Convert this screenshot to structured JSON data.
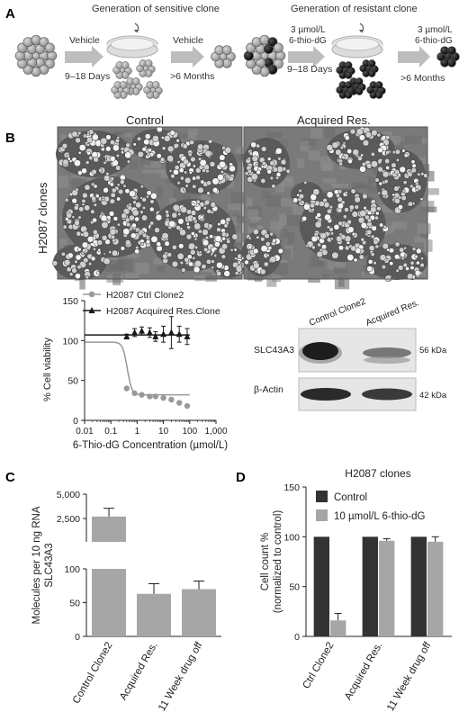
{
  "panels": {
    "A": {
      "label": "A",
      "sensitive_title": "Generation of sensitive clone",
      "resistant_title": "Generation of resistant clone",
      "vehicle1": "Vehicle",
      "days1": "9–18 Days",
      "vehicle2": "Vehicle",
      "months1": ">6 Months",
      "drug1_line1": "3 µmol/L",
      "drug1_line2": "6-thio-dG",
      "days2": "9–18 Days",
      "drug2_line1": "3 µmol/L",
      "drug2_line2": "6-thio-dG",
      "months2": ">6 Months"
    },
    "B": {
      "label": "B",
      "col_control": "Control",
      "col_resistant": "Acquired Res.",
      "row_label": "H2087 clones",
      "blot": {
        "lane1": "Control Clone2",
        "lane2": "Acquired Res.",
        "row1": "SLC43A3",
        "row2": "β-Actin",
        "kda1": "56 kDa",
        "kda2": "42 kDa"
      }
    },
    "C": {
      "label": "C"
    },
    "D": {
      "label": "D"
    }
  },
  "colors": {
    "ctrl_grey": "#999999",
    "acq_black": "#1a1a1a",
    "bar_dark": "#333333",
    "bar_light": "#a6a6a6"
  },
  "chart_data": [
    {
      "id": "B",
      "type": "line",
      "ylabel": "% Cell viability",
      "xlabel": "6-Thio-dG Concentration (µmol/L)",
      "xscale": "log",
      "xlim": [
        0.01,
        1000
      ],
      "ylim": [
        0,
        150
      ],
      "xticks": [
        "0.01",
        "0.1",
        "1",
        "10",
        "100",
        "1,000"
      ],
      "yticks": [
        "0",
        "50",
        "100",
        "150"
      ],
      "legend_position": "top-left",
      "series": [
        {
          "name": "H2087 Ctrl Clone2",
          "color": "#999999",
          "marker": "circle",
          "x": [
            0.4,
            0.8,
            1.5,
            3,
            5,
            10,
            20,
            40,
            80
          ],
          "y": [
            40,
            34,
            32,
            30,
            30,
            28,
            26,
            22,
            18
          ],
          "fit": {
            "top": 98,
            "bottom": 32,
            "ic50": 0.42
          }
        },
        {
          "name": "H2087 Acquired Res.Clone",
          "color": "#1a1a1a",
          "marker": "triangle",
          "x": [
            0.4,
            0.8,
            1.5,
            3,
            5,
            10,
            20,
            40,
            80
          ],
          "y": [
            105,
            110,
            112,
            110,
            105,
            108,
            110,
            108,
            105
          ],
          "err": [
            3,
            5,
            5,
            6,
            6,
            10,
            20,
            10,
            10
          ],
          "fit_line": 107
        }
      ]
    },
    {
      "id": "C",
      "type": "bar",
      "ylabel": "Molecules per 10 ng RNA SLC43A3",
      "categories": [
        "Control Clone2",
        "Acquired Res.",
        "11 Week drug off"
      ],
      "values": [
        2700,
        63,
        70
      ],
      "err": [
        850,
        15,
        12
      ],
      "axis_break": {
        "lower": [
          0,
          100
        ],
        "upper": [
          100,
          5000
        ]
      },
      "yticks": [
        "0",
        "50",
        "100",
        "2,500",
        "5,000"
      ],
      "color": "#a6a6a6"
    },
    {
      "id": "D",
      "type": "bar",
      "title": "H2087 clones",
      "ylabel": "Cell count % (normalized to control)",
      "categories": [
        "Ctrl Clone2",
        "Acquired Res.",
        "11 Week drug off"
      ],
      "ylim": [
        0,
        150
      ],
      "yticks": [
        "0",
        "50",
        "100",
        "150"
      ],
      "legend_position": "top-right",
      "series": [
        {
          "name": "Control",
          "color": "#333333",
          "values": [
            100,
            100,
            100
          ],
          "err": [
            0,
            0,
            0
          ]
        },
        {
          "name": "10 µmol/L 6-thio-dG",
          "color": "#a6a6a6",
          "values": [
            16,
            96,
            95
          ],
          "err": [
            7,
            2,
            5
          ]
        }
      ]
    }
  ]
}
